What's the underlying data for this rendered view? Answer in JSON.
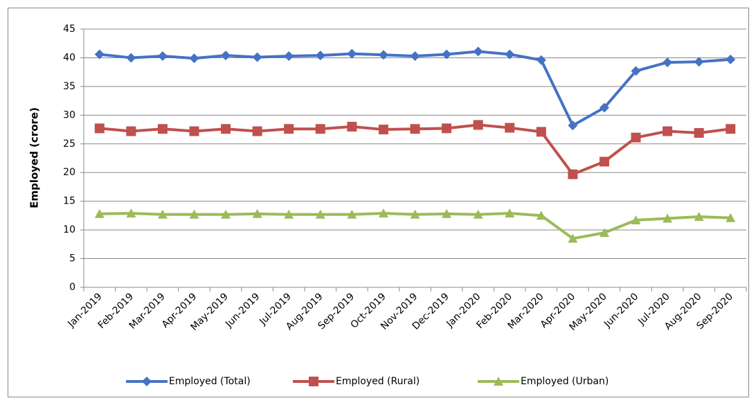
{
  "chart_data": {
    "type": "line",
    "y_label": "Employed (crore)",
    "categories": [
      "Jan-2019",
      "Feb-2019",
      "Mar-2019",
      "Apr-2019",
      "May-2019",
      "Jun-2019",
      "Jul-2019",
      "Aug-2019",
      "Sep-2019",
      "Oct-2019",
      "Nov-2019",
      "Dec-2019",
      "Jan-2020",
      "Feb-2020",
      "Mar-2020",
      "Apr-2020",
      "May-2020",
      "Jun-2020",
      "Jul-2020",
      "Aug-2020",
      "Sep-2020"
    ],
    "series": [
      {
        "name": "Employed (Total)",
        "color": "#4572c4",
        "marker": "diamond",
        "values": [
          40.6,
          40.0,
          40.3,
          39.9,
          40.4,
          40.1,
          40.3,
          40.4,
          40.7,
          40.5,
          40.3,
          40.6,
          41.1,
          40.6,
          39.6,
          28.2,
          31.3,
          37.7,
          39.2,
          39.3,
          39.7
        ]
      },
      {
        "name": "Employed (Rural)",
        "color": "#c0504d",
        "marker": "square",
        "values": [
          27.7,
          27.2,
          27.6,
          27.2,
          27.6,
          27.2,
          27.6,
          27.6,
          28.0,
          27.5,
          27.6,
          27.7,
          28.3,
          27.8,
          27.1,
          19.7,
          21.9,
          26.1,
          27.2,
          26.9,
          27.6
        ]
      },
      {
        "name": "Employed (Urban)",
        "color": "#9bbb59",
        "marker": "triangle",
        "values": [
          12.8,
          12.9,
          12.7,
          12.7,
          12.7,
          12.8,
          12.7,
          12.7,
          12.7,
          12.9,
          12.7,
          12.8,
          12.7,
          12.9,
          12.5,
          8.5,
          9.5,
          11.7,
          12.0,
          12.3,
          12.1
        ]
      }
    ],
    "ylim": [
      0,
      45
    ],
    "yticks": [
      0,
      5,
      10,
      15,
      20,
      25,
      30,
      35,
      40,
      45
    ],
    "grid": true,
    "legend": "bottom"
  }
}
